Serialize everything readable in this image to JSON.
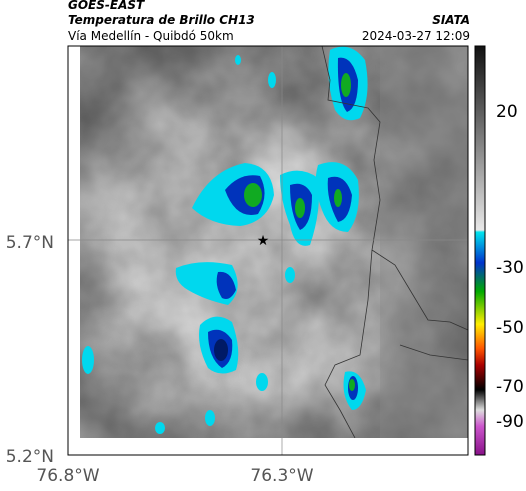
{
  "header": {
    "source": "GOES-EAST",
    "title": "Temperatura de Brillo CH13",
    "subtitle": "Vía Medellín - Quibdó 50km",
    "org": "SIATA",
    "datetime": "2024-03-27 12:09"
  },
  "map": {
    "yticks": [
      "5.7°N",
      "5.2°N"
    ],
    "xticks": [
      "76.8°W",
      "76.3°W"
    ]
  },
  "colorbar": {
    "ticks": [
      "20",
      "-30",
      "-50",
      "-70",
      "-90"
    ]
  }
}
